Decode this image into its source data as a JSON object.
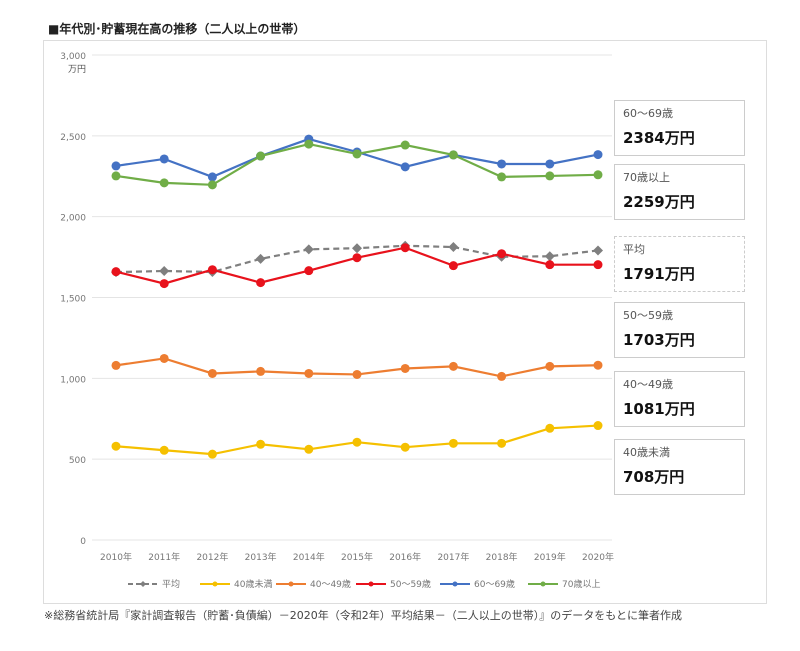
{
  "chart_data": {
    "type": "line",
    "title": "■年代別･貯蓄現在高の推移（二人以上の世帯）",
    "ylabel": "万円",
    "ylim": [
      0,
      3000
    ],
    "yticks": [
      "0",
      "500",
      "1,000",
      "1,500",
      "2,000",
      "2,500",
      "3,000"
    ],
    "grid": true,
    "legend": "bottom",
    "categories": [
      "2010年",
      "2011年",
      "2012年",
      "2013年",
      "2014年",
      "2015年",
      "2016年",
      "2017年",
      "2018年",
      "2019年",
      "2020年"
    ],
    "series": [
      {
        "name": "平均",
        "color": "#7f7f7f",
        "dashed": true,
        "marker": "diamond",
        "values": [
          1657,
          1664,
          1658,
          1739,
          1798,
          1805,
          1820,
          1812,
          1752,
          1755,
          1791
        ]
      },
      {
        "name": "40歳未満",
        "color": "#f5c000",
        "marker": "circle",
        "values": [
          580,
          555,
          531,
          592,
          561,
          605,
          574,
          598,
          598,
          691,
          708
        ]
      },
      {
        "name": "40～49歳",
        "color": "#ed7d31",
        "marker": "circle",
        "values": [
          1080,
          1123,
          1030,
          1043,
          1030,
          1024,
          1061,
          1074,
          1012,
          1074,
          1081
        ]
      },
      {
        "name": "50～59歳",
        "color": "#e8121c",
        "marker": "circle",
        "values": [
          1660,
          1586,
          1672,
          1592,
          1666,
          1746,
          1808,
          1697,
          1771,
          1703,
          1703
        ]
      },
      {
        "name": "60～69歳",
        "color": "#4472c4",
        "marker": "circle",
        "values": [
          2314,
          2357,
          2246,
          2375,
          2480,
          2400,
          2308,
          2382,
          2326,
          2326,
          2384
        ]
      },
      {
        "name": "70歳以上",
        "color": "#70ad47",
        "marker": "circle",
        "values": [
          2252,
          2209,
          2197,
          2375,
          2449,
          2388,
          2443,
          2382,
          2246,
          2252,
          2259
        ]
      }
    ],
    "annotations": [
      {
        "label": "60～69歳",
        "value": "2384万円"
      },
      {
        "label": "70歳以上",
        "value": "2259万円"
      },
      {
        "label": "平均",
        "value": "1791万円"
      },
      {
        "label": "50～59歳",
        "value": "1703万円"
      },
      {
        "label": "40～49歳",
        "value": "1081万円"
      },
      {
        "label": "40歳未満",
        "value": "708万円"
      }
    ]
  },
  "note": "※総務省統計局『家計調査報告（貯蓄･負債編）－2020年（令和2年）平均結果－（二人以上の世帯）』のデータをもとに筆者作成"
}
